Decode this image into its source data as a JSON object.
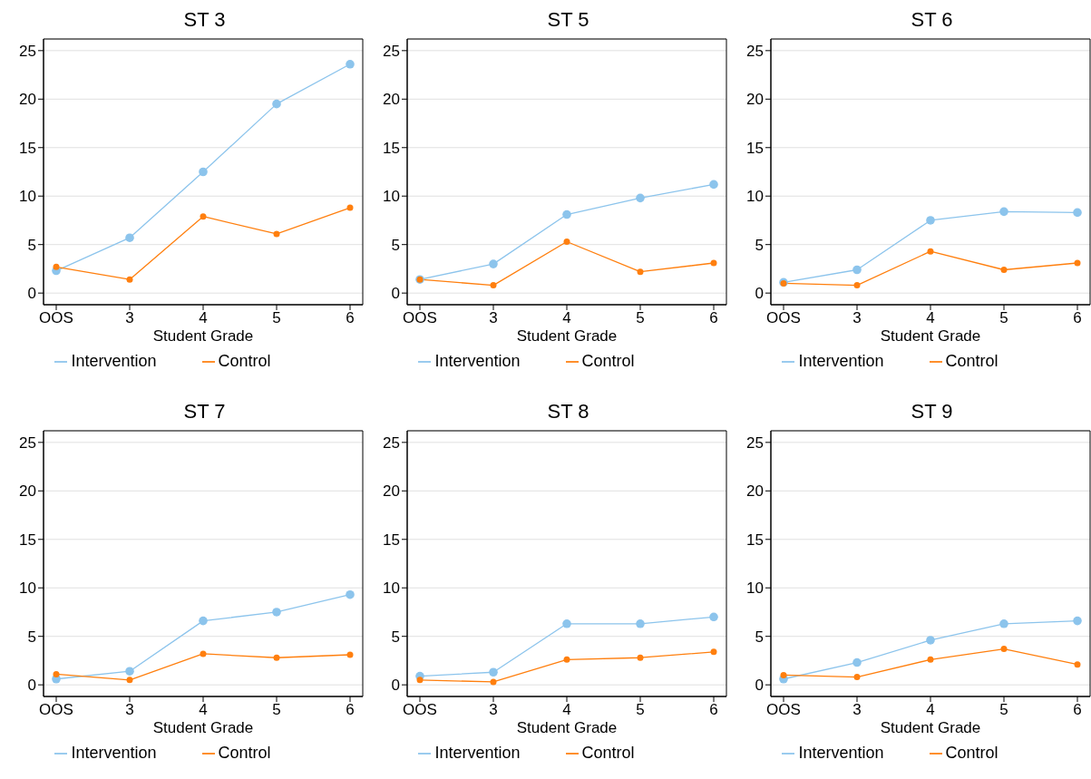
{
  "chart_data": [
    {
      "type": "line",
      "title": "ST 3",
      "xlabel": "Student Grade",
      "categories": [
        "OOS",
        "3",
        "4",
        "5",
        "6"
      ],
      "ylim": [
        -1.2,
        26.2
      ],
      "yticks": [
        0,
        5,
        10,
        15,
        20,
        25
      ],
      "grid": "y",
      "legend": "bottom",
      "marker": "circle",
      "series": [
        {
          "name": "Intervention",
          "color": "#8cc4ec",
          "values": [
            2.3,
            5.7,
            12.5,
            19.5,
            23.6
          ]
        },
        {
          "name": "Control",
          "color": "#ff7f0e",
          "values": [
            2.7,
            1.4,
            7.9,
            6.1,
            8.8
          ]
        }
      ]
    },
    {
      "type": "line",
      "title": "ST 5",
      "xlabel": "Student Grade",
      "categories": [
        "OOS",
        "3",
        "4",
        "5",
        "6"
      ],
      "ylim": [
        -1.2,
        26.2
      ],
      "yticks": [
        0,
        5,
        10,
        15,
        20,
        25
      ],
      "grid": "y",
      "legend": "bottom",
      "marker": "circle",
      "series": [
        {
          "name": "Intervention",
          "color": "#8cc4ec",
          "values": [
            1.4,
            3.0,
            8.1,
            9.8,
            11.2
          ]
        },
        {
          "name": "Control",
          "color": "#ff7f0e",
          "values": [
            1.4,
            0.8,
            5.3,
            2.2,
            3.1
          ]
        }
      ]
    },
    {
      "type": "line",
      "title": "ST 6",
      "xlabel": "Student Grade",
      "categories": [
        "OOS",
        "3",
        "4",
        "5",
        "6"
      ],
      "ylim": [
        -1.2,
        26.2
      ],
      "yticks": [
        0,
        5,
        10,
        15,
        20,
        25
      ],
      "grid": "y",
      "legend": "bottom",
      "marker": "circle",
      "series": [
        {
          "name": "Intervention",
          "color": "#8cc4ec",
          "values": [
            1.1,
            2.4,
            7.5,
            8.4,
            8.3
          ]
        },
        {
          "name": "Control",
          "color": "#ff7f0e",
          "values": [
            1.0,
            0.8,
            4.3,
            2.4,
            3.1
          ]
        }
      ]
    },
    {
      "type": "line",
      "title": "ST 7",
      "xlabel": "Student Grade",
      "categories": [
        "OOS",
        "3",
        "4",
        "5",
        "6"
      ],
      "ylim": [
        -1.2,
        26.2
      ],
      "yticks": [
        0,
        5,
        10,
        15,
        20,
        25
      ],
      "grid": "y",
      "legend": "bottom",
      "marker": "circle",
      "series": [
        {
          "name": "Intervention",
          "color": "#8cc4ec",
          "values": [
            0.6,
            1.4,
            6.6,
            7.5,
            9.3
          ]
        },
        {
          "name": "Control",
          "color": "#ff7f0e",
          "values": [
            1.1,
            0.5,
            3.2,
            2.8,
            3.1
          ]
        }
      ]
    },
    {
      "type": "line",
      "title": "ST 8",
      "xlabel": "Student Grade",
      "categories": [
        "OOS",
        "3",
        "4",
        "5",
        "6"
      ],
      "ylim": [
        -1.2,
        26.2
      ],
      "yticks": [
        0,
        5,
        10,
        15,
        20,
        25
      ],
      "grid": "y",
      "legend": "bottom",
      "marker": "circle",
      "series": [
        {
          "name": "Intervention",
          "color": "#8cc4ec",
          "values": [
            0.9,
            1.3,
            6.3,
            6.3,
            7.0
          ]
        },
        {
          "name": "Control",
          "color": "#ff7f0e",
          "values": [
            0.5,
            0.3,
            2.6,
            2.8,
            3.4
          ]
        }
      ]
    },
    {
      "type": "line",
      "title": "ST 9",
      "xlabel": "Student Grade",
      "categories": [
        "OOS",
        "3",
        "4",
        "5",
        "6"
      ],
      "ylim": [
        -1.2,
        26.2
      ],
      "yticks": [
        0,
        5,
        10,
        15,
        20,
        25
      ],
      "grid": "y",
      "legend": "bottom",
      "marker": "circle",
      "series": [
        {
          "name": "Intervention",
          "color": "#8cc4ec",
          "values": [
            0.6,
            2.3,
            4.6,
            6.3,
            6.6
          ]
        },
        {
          "name": "Control",
          "color": "#ff7f0e",
          "values": [
            1.0,
            0.8,
            2.6,
            3.7,
            2.1
          ]
        }
      ]
    }
  ]
}
